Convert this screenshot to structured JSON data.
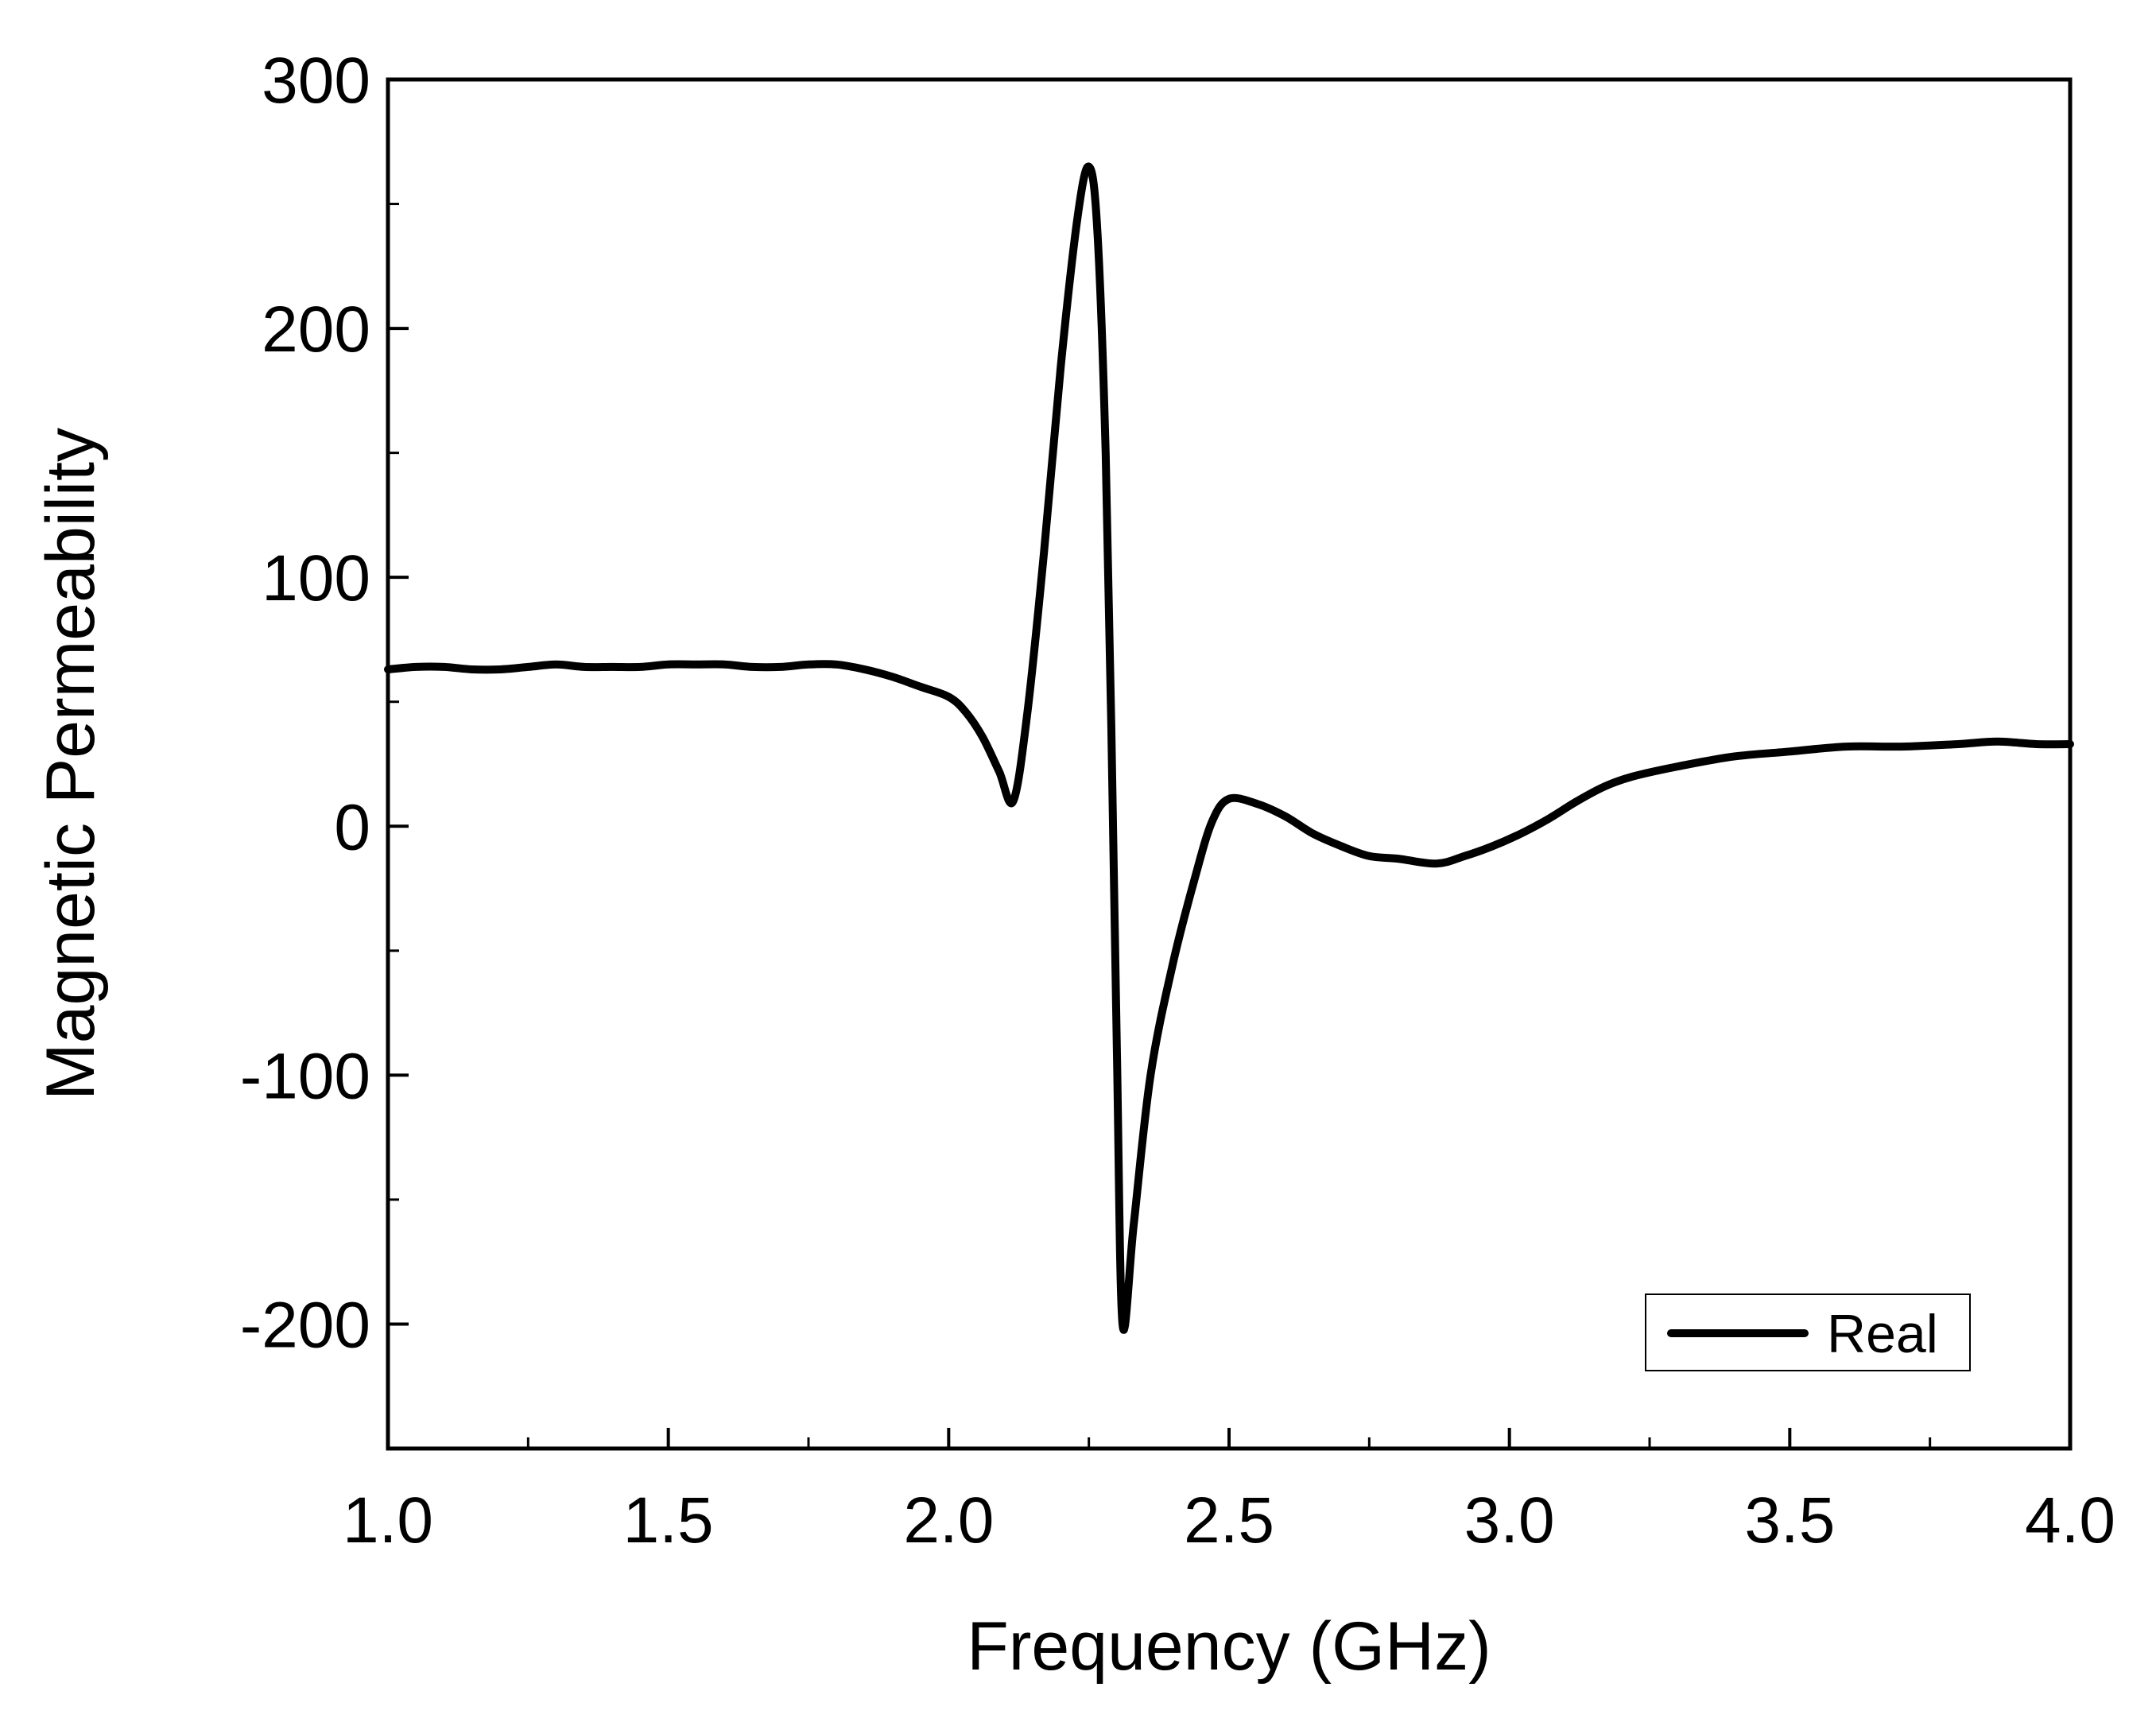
{
  "chart_data": {
    "type": "line",
    "xlabel": "Frequency (GHz)",
    "ylabel": "Magnetic Permeability",
    "xlim": [
      1.0,
      4.0
    ],
    "ylim": [
      -250,
      300
    ],
    "x_ticks": [
      1.0,
      1.5,
      2.0,
      2.5,
      3.0,
      3.5,
      4.0
    ],
    "x_tick_labels": [
      "1.0",
      "1.5",
      "2.0",
      "2.5",
      "3.0",
      "3.5",
      "4.0"
    ],
    "x_minor_ticks": [
      1.25,
      1.75,
      2.25,
      2.75,
      3.25,
      3.75
    ],
    "y_ticks": [
      -200,
      -100,
      0,
      100,
      200,
      300
    ],
    "y_tick_labels": [
      "-200",
      "-100",
      "0",
      "100",
      "200",
      "300"
    ],
    "y_minor_ticks": [
      -250,
      -150,
      -50,
      50,
      150,
      250
    ],
    "grid": false,
    "legend_position": "bottom-right",
    "line_color": "#000000",
    "series": [
      {
        "name": "Real",
        "x": [
          1.0,
          1.05,
          1.1,
          1.15,
          1.2,
          1.25,
          1.3,
          1.35,
          1.4,
          1.45,
          1.5,
          1.55,
          1.6,
          1.65,
          1.7,
          1.75,
          1.8,
          1.85,
          1.9,
          1.95,
          2.0,
          2.03,
          2.06,
          2.09,
          2.115,
          2.14,
          2.17,
          2.2,
          2.23,
          2.25,
          2.265,
          2.28,
          2.29,
          2.3,
          2.31,
          2.33,
          2.36,
          2.4,
          2.44,
          2.47,
          2.5,
          2.55,
          2.6,
          2.65,
          2.7,
          2.75,
          2.8,
          2.87,
          2.92,
          2.97,
          3.02,
          3.07,
          3.12,
          3.17,
          3.22,
          3.3,
          3.4,
          3.5,
          3.6,
          3.7,
          3.8,
          3.87,
          3.94,
          4.0
        ],
        "y": [
          63,
          64,
          64,
          63,
          63,
          64,
          65,
          64,
          64,
          64,
          65,
          65,
          65,
          64,
          64,
          65,
          65,
          63,
          60,
          56,
          52,
          46,
          36,
          22,
          10,
          45,
          110,
          185,
          245,
          265,
          240,
          150,
          40,
          -90,
          -200,
          -160,
          -100,
          -55,
          -20,
          2,
          11,
          9,
          4,
          -3,
          -8,
          -12,
          -13,
          -15,
          -12,
          -8,
          -3,
          3,
          10,
          16,
          20,
          24,
          28,
          30,
          32,
          32,
          33,
          34,
          33,
          33
        ]
      }
    ]
  }
}
